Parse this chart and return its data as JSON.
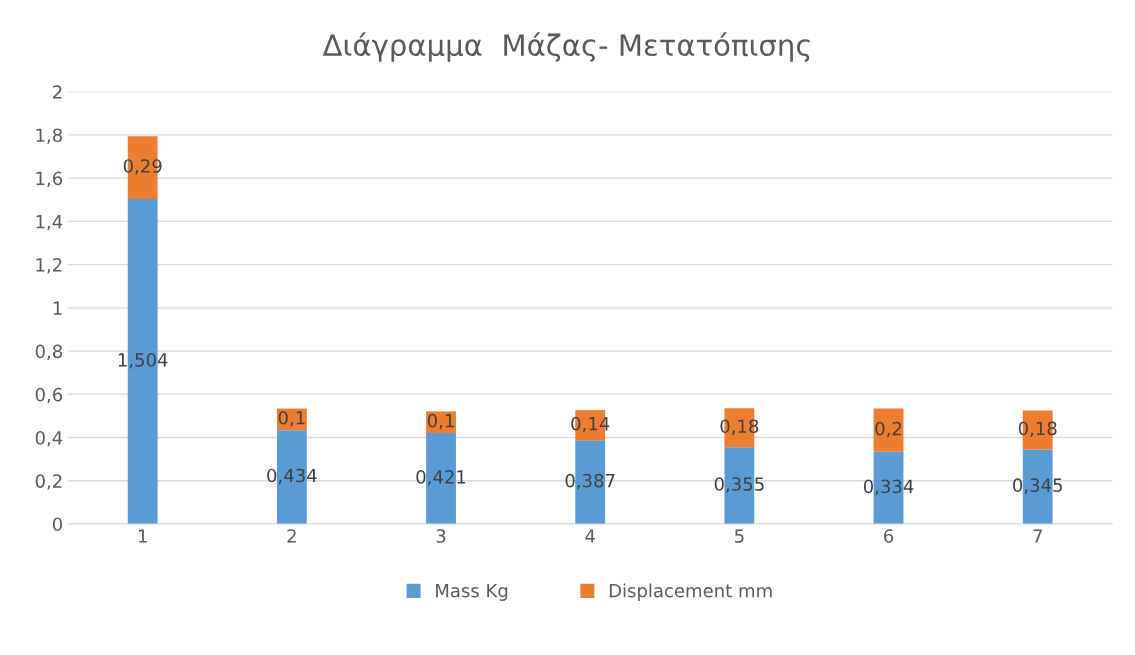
{
  "chart_data": {
    "type": "bar",
    "title": "Διάγραμμα  Μάζας- Μετατόπισης",
    "stacked": true,
    "categories": [
      "1",
      "2",
      "3",
      "4",
      "5",
      "6",
      "7"
    ],
    "series": [
      {
        "name": "Mass Kg",
        "color": "#5b9bd5",
        "values": [
          1.504,
          0.434,
          0.421,
          0.387,
          0.355,
          0.334,
          0.345
        ],
        "value_labels": [
          "1,504",
          "0,434",
          "0,421",
          "0,387",
          "0,355",
          "0,334",
          "0,345"
        ]
      },
      {
        "name": "Displacement mm",
        "color": "#ed7d31",
        "values": [
          0.29,
          0.1,
          0.1,
          0.14,
          0.18,
          0.2,
          0.18
        ],
        "value_labels": [
          "0,29",
          "0,1",
          "0,1",
          "0,14",
          "0,18",
          "0,2",
          "0,18"
        ]
      }
    ],
    "ylim": [
      0,
      2
    ],
    "yticks": [
      0,
      {
        "value": 0.2,
        "label": "0,2"
      },
      {
        "value": 0.4,
        "label": "0,4"
      },
      {
        "value": 0.6,
        "label": "0,6"
      },
      {
        "value": 0.8,
        "label": "0,8"
      },
      1,
      {
        "value": 1.2,
        "label": "1,2"
      },
      {
        "value": 1.4,
        "label": "1,4"
      },
      {
        "value": 1.6,
        "label": "1,6"
      },
      {
        "value": 1.8,
        "label": "1,8"
      },
      2
    ],
    "grid": "y",
    "legend": "bottom"
  }
}
